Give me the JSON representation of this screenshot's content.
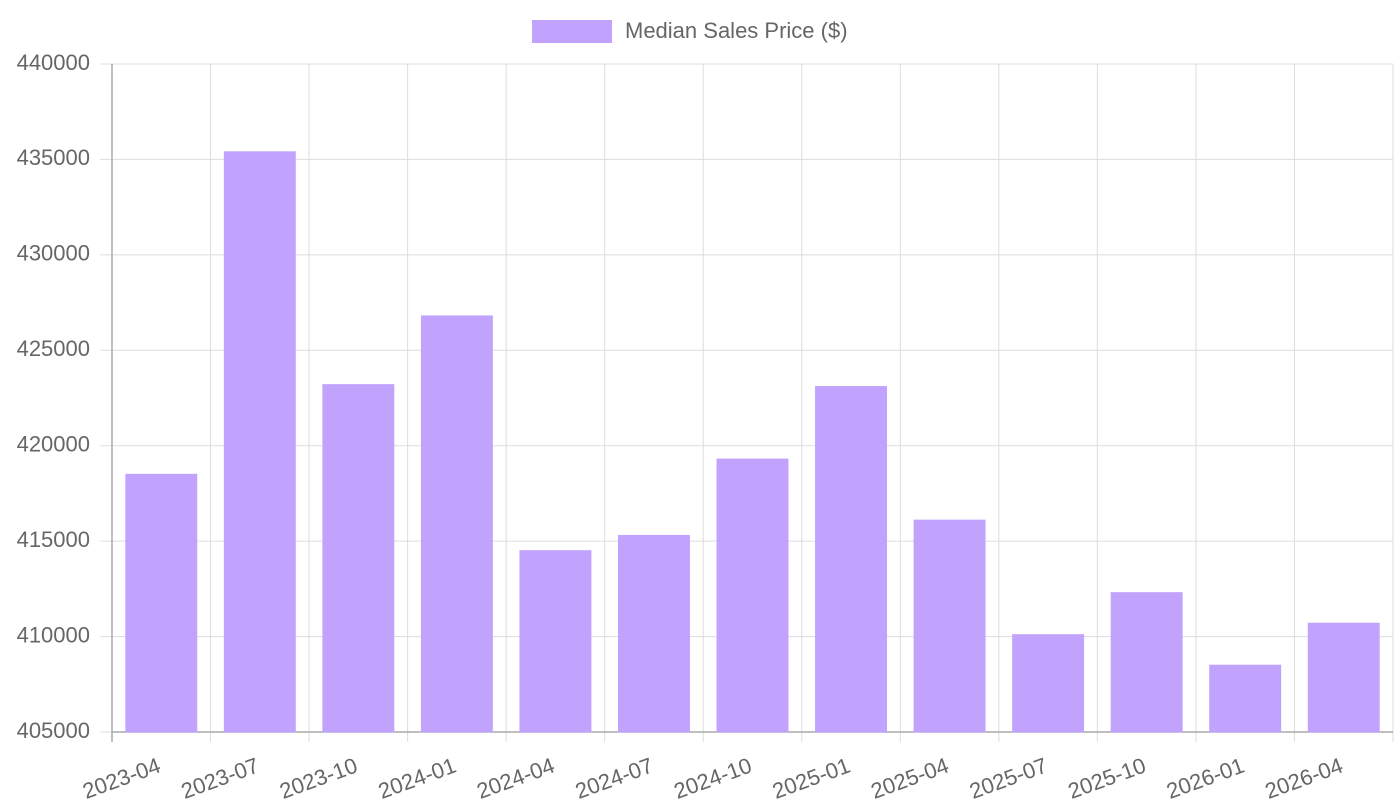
{
  "chart_data": {
    "type": "bar",
    "legend": "Median Sales Price ($)",
    "color": "#c1a3fe",
    "categories": [
      "2023-04",
      "2023-07",
      "2023-10",
      "2024-01",
      "2024-04",
      "2024-07",
      "2024-10",
      "2025-01",
      "2025-04",
      "2025-07",
      "2025-10",
      "2026-01",
      "2026-04"
    ],
    "values": [
      418500,
      435400,
      423200,
      426800,
      414500,
      415300,
      419300,
      423100,
      416100,
      410100,
      412300,
      408500,
      410700
    ],
    "ylim": [
      405000,
      440000
    ],
    "yticks": [
      405000,
      410000,
      415000,
      420000,
      425000,
      430000,
      435000,
      440000
    ],
    "grid": true
  }
}
